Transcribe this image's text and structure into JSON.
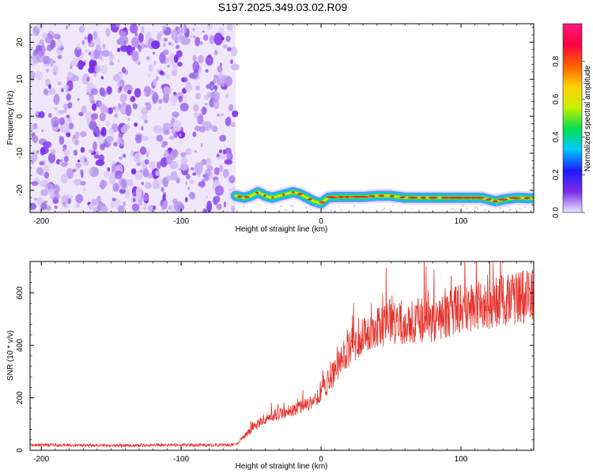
{
  "title": "S197.2025.349.03.02.R09",
  "colors": {
    "noise": "#7a2be8",
    "snr_line": "#e8322b",
    "track_core": "#e8322b",
    "track_mid": "#22e05a",
    "track_edge": "#3a8cff"
  },
  "chart_data": [
    {
      "type": "heatmap",
      "title": "S197.2025.349.03.02.R09",
      "xlabel": "Height of straight line (km)",
      "ylabel": "Frequency (Hz)",
      "xlim": [
        -208,
        152
      ],
      "ylim": [
        -26,
        25
      ],
      "xticks": [
        -200,
        -100,
        0,
        100
      ],
      "yticks": [
        -20,
        -10,
        0,
        10,
        20
      ],
      "colorbar": {
        "label": "Normalized spectral amplitude",
        "range": [
          0,
          1
        ],
        "ticks": [
          "0.0",
          "0.2",
          "0.4",
          "0.6",
          "0.8"
        ],
        "colormap": [
          "#e8e8ff",
          "#7a2be8",
          "#1a1aff",
          "#00c8ff",
          "#00e050",
          "#c8f000",
          "#ffd000",
          "#ff6000",
          "#ff0040",
          "#ff1a80"
        ]
      },
      "noise_region_x": [
        -208,
        -61
      ],
      "signal_track": {
        "x": [
          -61,
          -55,
          -50,
          -45,
          -40,
          -35,
          -30,
          -25,
          -20,
          -15,
          -10,
          -5,
          0,
          5,
          10,
          20,
          30,
          40,
          50,
          60,
          70,
          80,
          90,
          100,
          110,
          115,
          120,
          125,
          130,
          140,
          152
        ],
        "frequency": [
          -21.5,
          -22,
          -21.5,
          -20.5,
          -21.5,
          -22,
          -21.5,
          -21,
          -20.5,
          -21,
          -22,
          -23,
          -23.5,
          -22,
          -21.8,
          -21.8,
          -21.8,
          -21.5,
          -21.5,
          -22,
          -22,
          -22,
          -22,
          -22,
          -22,
          -22,
          -22.5,
          -23,
          -22.5,
          -22,
          -22.2
        ]
      }
    },
    {
      "type": "line",
      "xlabel": "Height of straight line (km)",
      "ylabel": "SNR (10 * v/v)",
      "xlim": [
        -208,
        152
      ],
      "ylim": [
        0,
        720
      ],
      "xticks": [
        -200,
        -100,
        0,
        100
      ],
      "yticks": [
        0,
        200,
        400,
        600
      ],
      "series": [
        {
          "x": [
            -208,
            -180,
            -150,
            -120,
            -90,
            -65,
            -60,
            -50,
            -40,
            -30,
            -20,
            -10,
            0,
            10,
            20,
            30,
            40,
            50,
            60,
            70,
            80,
            90,
            100,
            110,
            120,
            130,
            140,
            152
          ],
          "values": [
            20,
            20,
            18,
            20,
            20,
            20,
            25,
            80,
            120,
            140,
            150,
            170,
            220,
            300,
            390,
            440,
            470,
            480,
            480,
            500,
            500,
            520,
            540,
            550,
            560,
            570,
            580,
            590
          ]
        }
      ]
    }
  ],
  "ui": {
    "colorbar_label": "Normalized spectral amplitude"
  }
}
